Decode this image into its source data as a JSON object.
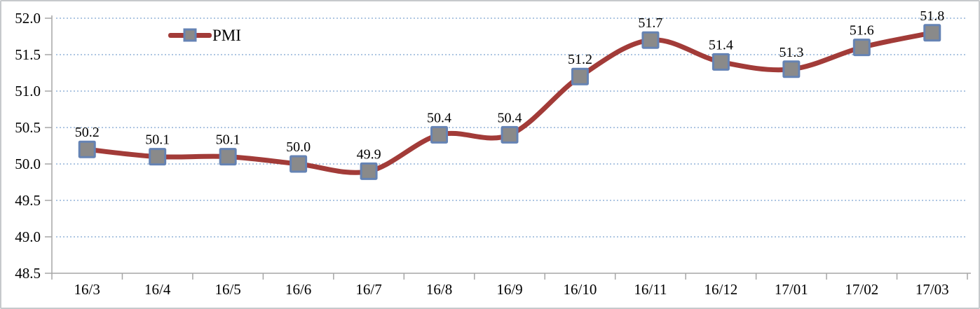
{
  "chart_data": {
    "type": "line",
    "smoothed_line": true,
    "categories": [
      "16/3",
      "16/4",
      "16/5",
      "16/6",
      "16/7",
      "16/8",
      "16/9",
      "16/10",
      "16/11",
      "16/12",
      "17/01",
      "17/02",
      "17/03"
    ],
    "series": [
      {
        "name": "PMI",
        "values": [
          50.2,
          50.1,
          50.1,
          50.0,
          49.9,
          50.4,
          50.4,
          51.2,
          51.7,
          51.4,
          51.3,
          51.6,
          51.8
        ],
        "data_labels": [
          "50.2",
          "50.1",
          "50.1",
          "50.0",
          "49.9",
          "50.4",
          "50.4",
          "51.2",
          "51.7",
          "51.4",
          "51.3",
          "51.6",
          "51.8"
        ]
      }
    ],
    "ylim": [
      48.5,
      52.0
    ],
    "ytick_step": 0.5,
    "ytick_labels": [
      "48.5",
      "49.0",
      "49.5",
      "50.0",
      "50.5",
      "51.0",
      "51.5",
      "52.0"
    ],
    "grid": "horizontal-dotted",
    "legend": {
      "position": "inside-top-left",
      "entries": [
        "PMI"
      ]
    },
    "colors": {
      "line": "#a23b38",
      "marker_fill": "#8a8a8a",
      "marker_border": "#6583b4",
      "gridline": "#aec6e2",
      "axis": "#a6a6a6",
      "label_text": "#000000"
    }
  }
}
